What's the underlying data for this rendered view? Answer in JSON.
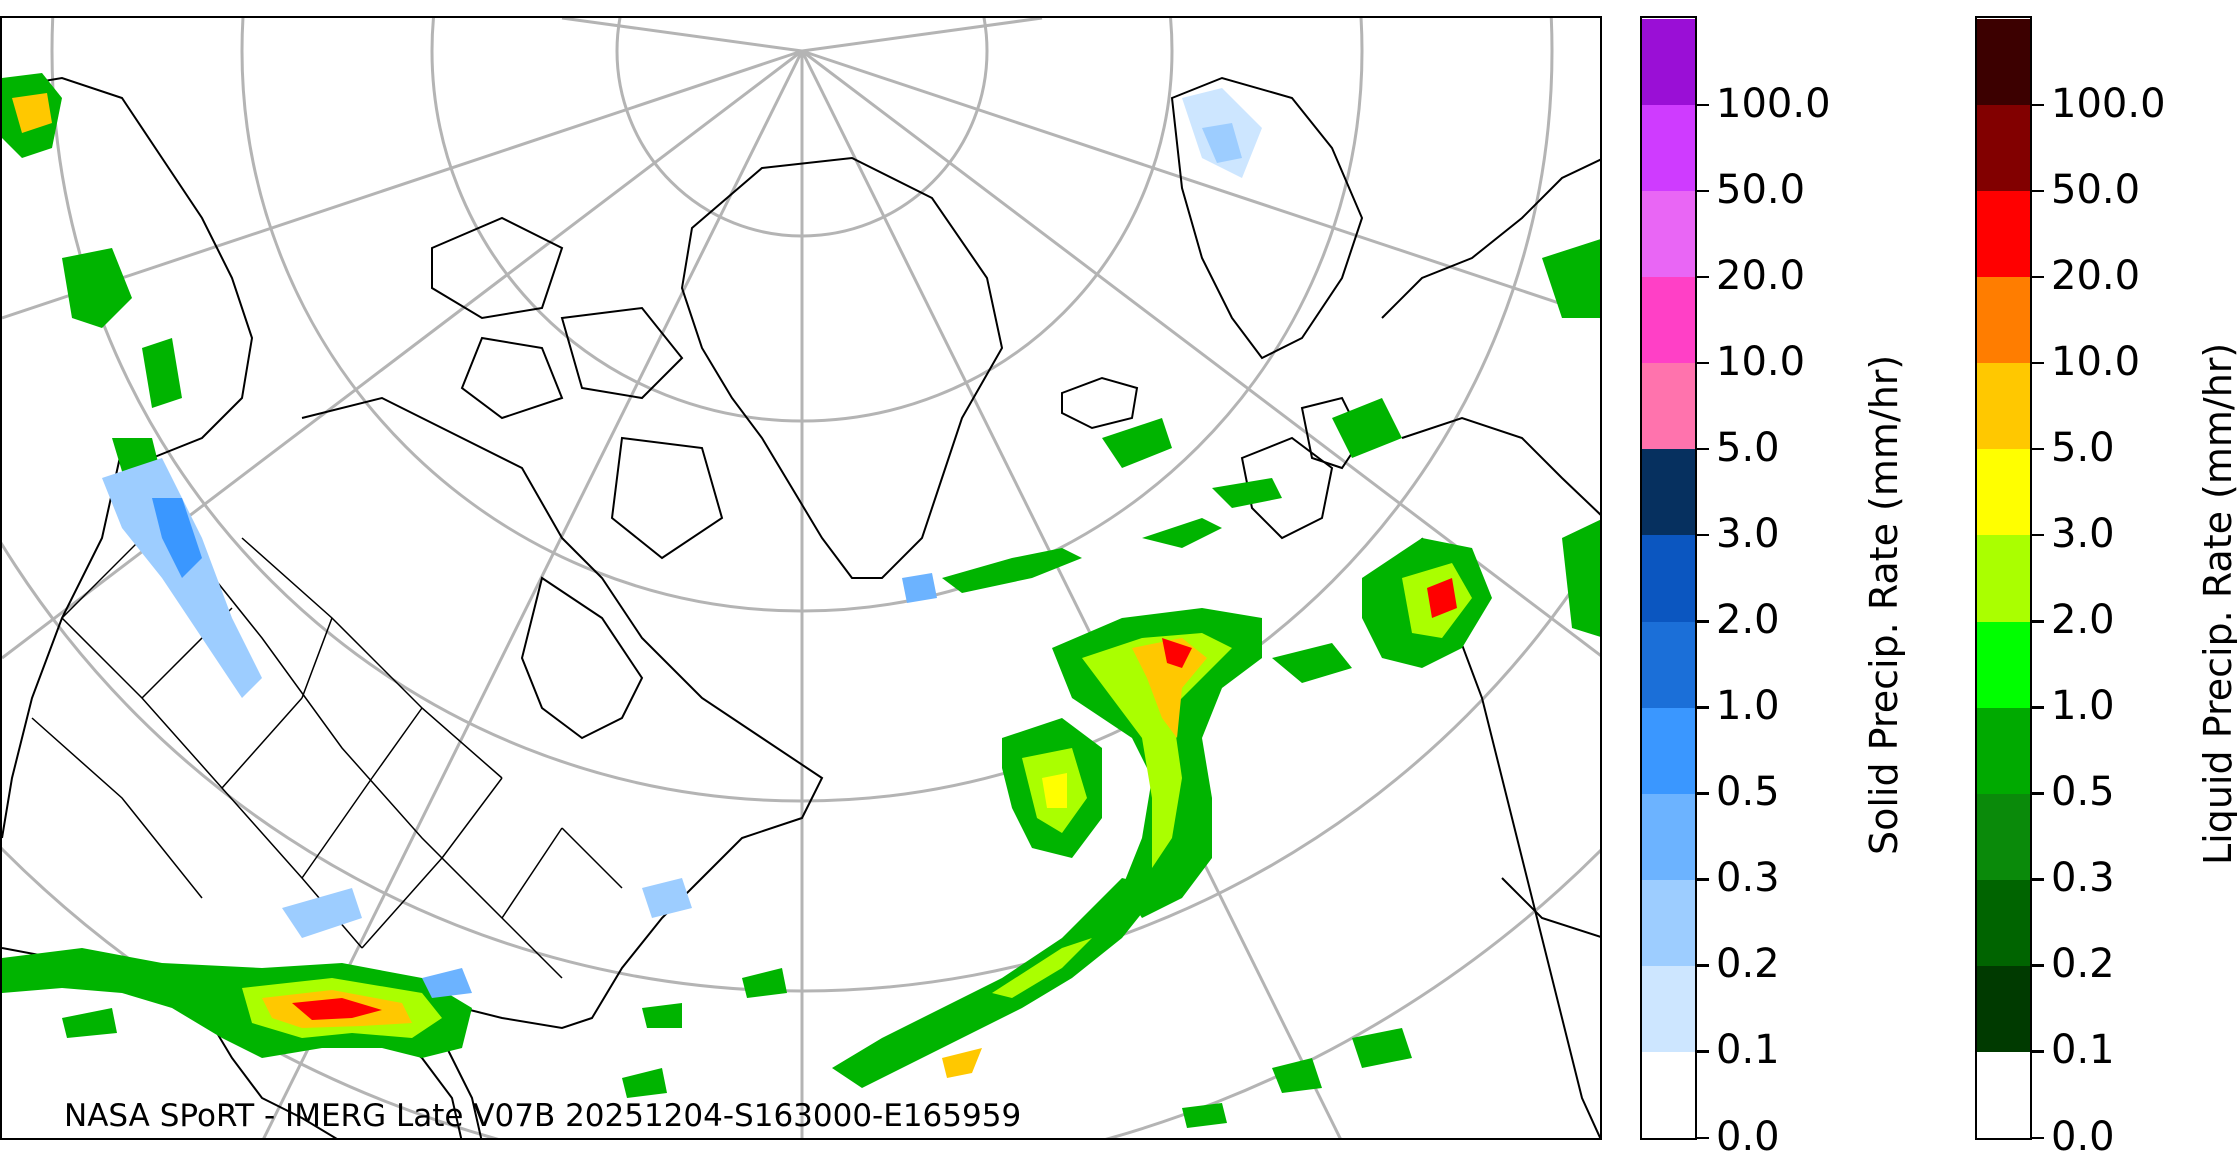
{
  "credit": "NASA SPoRT - IMERG Late V07B 20251204-S163000-E165959",
  "solid_bar": {
    "title": "Solid Precip. Rate (mm/hr)",
    "ticks": [
      "0.0",
      "0.1",
      "0.2",
      "0.3",
      "0.5",
      "1.0",
      "2.0",
      "3.0",
      "5.0",
      "10.0",
      "20.0",
      "50.0",
      "100.0"
    ],
    "colors": [
      "#ffffff",
      "#cde6ff",
      "#9dcdff",
      "#6cb3ff",
      "#3a97ff",
      "#1b6fd8",
      "#0b56c0",
      "#06305f",
      "#ff73ad",
      "#ff40c6",
      "#e966f5",
      "#cf3bff",
      "#9a0fd6"
    ]
  },
  "liquid_bar": {
    "title": "Liquid Precip. Rate (mm/hr)",
    "ticks": [
      "0.0",
      "0.1",
      "0.2",
      "0.3",
      "0.5",
      "1.0",
      "2.0",
      "3.0",
      "5.0",
      "10.0",
      "20.0",
      "50.0",
      "100.0"
    ],
    "colors": [
      "#ffffff",
      "#003a00",
      "#006400",
      "#0a8a0a",
      "#00aa00",
      "#00ff00",
      "#aaff00",
      "#ffff00",
      "#ffc800",
      "#ff7d00",
      "#ff0000",
      "#820000",
      "#3c0000"
    ]
  }
}
